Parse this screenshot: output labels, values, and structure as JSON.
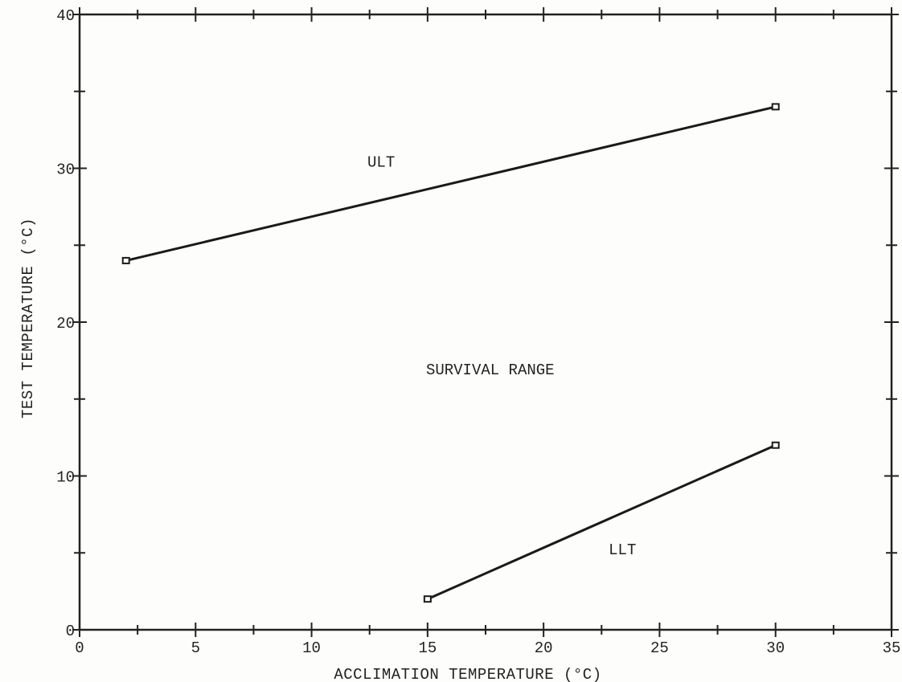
{
  "chart_data": {
    "type": "line",
    "xlabel": "ACCLIMATION TEMPERATURE (°C)",
    "ylabel": "TEST TEMPERATURE (°C)",
    "xlim": [
      0,
      35
    ],
    "ylim": [
      0,
      40
    ],
    "x_ticks": [
      0,
      5,
      10,
      15,
      20,
      25,
      30,
      35
    ],
    "y_ticks": [
      0,
      10,
      20,
      30,
      40
    ],
    "grid": false,
    "series": [
      {
        "points": [
          {
            "x": 2,
            "y": 24
          },
          {
            "x": 30,
            "y": 34
          }
        ]
      },
      {
        "points": [
          {
            "x": 15,
            "y": 2
          },
          {
            "x": 30,
            "y": 12
          }
        ]
      }
    ],
    "annotations": [
      {
        "text": "ULT",
        "x": 13,
        "y": 30.1
      },
      {
        "text": "SURVIVAL RANGE",
        "x": 17.7,
        "y": 16.6
      },
      {
        "text": "LLT",
        "x": 23.4,
        "y": 4.9
      }
    ]
  }
}
